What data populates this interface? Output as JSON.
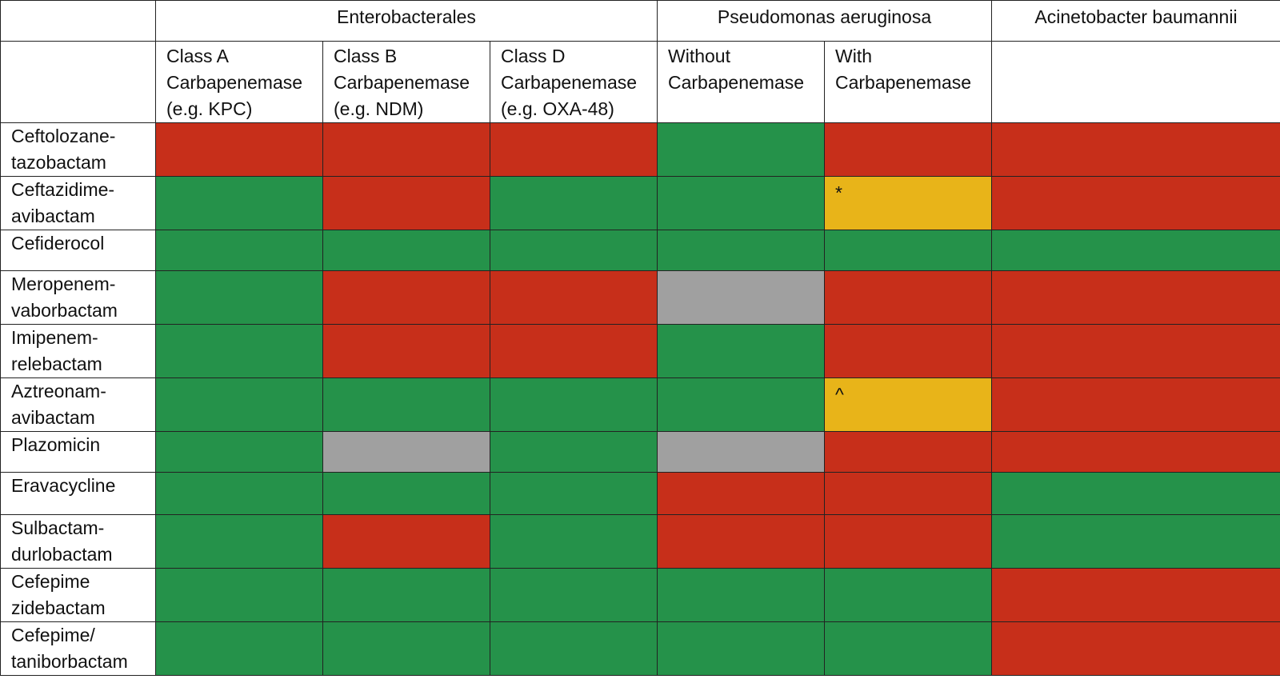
{
  "header": {
    "corner": "",
    "groups": [
      {
        "label": "Enterobacterales",
        "span": 3
      },
      {
        "label": "Pseudomonas aeruginosa",
        "span": 2
      },
      {
        "label": "Acinetobacter baumannii",
        "span": 1
      }
    ],
    "subcolumns": [
      "Class A Carbapenemase (e.g. KPC)",
      "Class B Carbapenemase (e.g. NDM)",
      "Class D Carbapenemase (e.g. OXA-48)",
      "Without Carbapenemase",
      "With Carbapenemase",
      ""
    ]
  },
  "colors": {
    "green": "#25924a",
    "red": "#c72f1a",
    "gray": "#a0a0a0",
    "amber": "#e8b419"
  },
  "rows": [
    {
      "drug": "Ceftolozane-tazobactam",
      "cells": [
        {
          "s": "red"
        },
        {
          "s": "red"
        },
        {
          "s": "red"
        },
        {
          "s": "green"
        },
        {
          "s": "red"
        },
        {
          "s": "red"
        }
      ]
    },
    {
      "drug": "Ceftazidime-avibactam",
      "cells": [
        {
          "s": "green"
        },
        {
          "s": "red"
        },
        {
          "s": "green"
        },
        {
          "s": "green"
        },
        {
          "s": "amber",
          "mark": "*"
        },
        {
          "s": "red"
        }
      ]
    },
    {
      "drug": "Cefiderocol",
      "cells": [
        {
          "s": "green"
        },
        {
          "s": "green"
        },
        {
          "s": "green"
        },
        {
          "s": "green"
        },
        {
          "s": "green"
        },
        {
          "s": "green"
        }
      ]
    },
    {
      "drug": "Meropenem-vaborbactam",
      "cells": [
        {
          "s": "green"
        },
        {
          "s": "red"
        },
        {
          "s": "red"
        },
        {
          "s": "gray"
        },
        {
          "s": "red"
        },
        {
          "s": "red"
        }
      ]
    },
    {
      "drug": "Imipenem-relebactam",
      "cells": [
        {
          "s": "green"
        },
        {
          "s": "red"
        },
        {
          "s": "red"
        },
        {
          "s": "green"
        },
        {
          "s": "red"
        },
        {
          "s": "red"
        }
      ]
    },
    {
      "drug": "Aztreonam-avibactam",
      "cells": [
        {
          "s": "green"
        },
        {
          "s": "green"
        },
        {
          "s": "green"
        },
        {
          "s": "green"
        },
        {
          "s": "amber",
          "mark": "^"
        },
        {
          "s": "red"
        }
      ]
    },
    {
      "drug": "Plazomicin",
      "cells": [
        {
          "s": "green"
        },
        {
          "s": "gray"
        },
        {
          "s": "green"
        },
        {
          "s": "gray"
        },
        {
          "s": "red"
        },
        {
          "s": "red"
        }
      ]
    },
    {
      "drug": "Eravacycline",
      "cells": [
        {
          "s": "green"
        },
        {
          "s": "green"
        },
        {
          "s": "green"
        },
        {
          "s": "red"
        },
        {
          "s": "red"
        },
        {
          "s": "green"
        }
      ]
    },
    {
      "drug": "Sulbactam-durlobactam",
      "cells": [
        {
          "s": "green"
        },
        {
          "s": "red"
        },
        {
          "s": "green"
        },
        {
          "s": "red"
        },
        {
          "s": "red"
        },
        {
          "s": "green"
        }
      ]
    },
    {
      "drug": "Cefepime zidebactam",
      "cells": [
        {
          "s": "green"
        },
        {
          "s": "green"
        },
        {
          "s": "green"
        },
        {
          "s": "green"
        },
        {
          "s": "green"
        },
        {
          "s": "red"
        }
      ]
    },
    {
      "drug": "Cefepime/ taniborbactam",
      "cells": [
        {
          "s": "green"
        },
        {
          "s": "green"
        },
        {
          "s": "green"
        },
        {
          "s": "green"
        },
        {
          "s": "green"
        },
        {
          "s": "red"
        }
      ]
    }
  ]
}
